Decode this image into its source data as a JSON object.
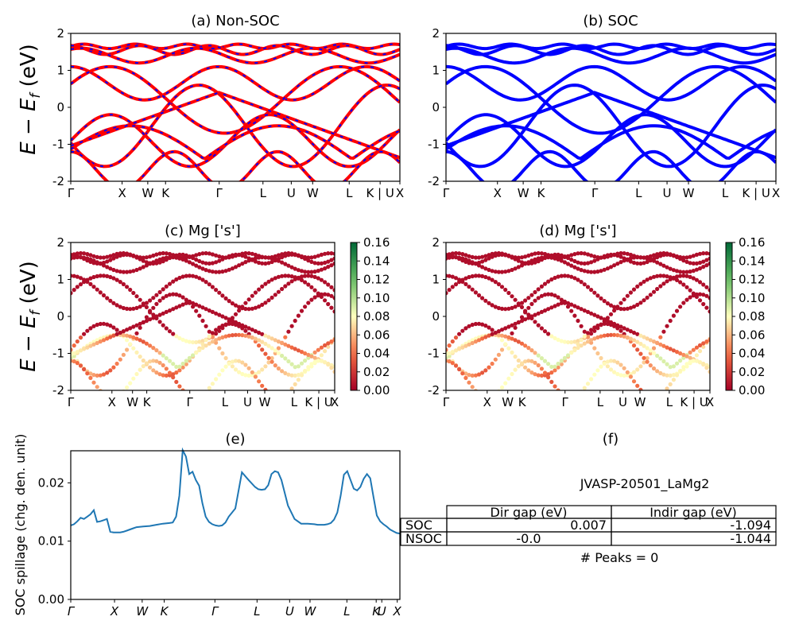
{
  "colors": {
    "nonsoc_red": "#ff0000",
    "nonsoc_blue": "#0000ff",
    "soc_blue": "#0000ff",
    "spillage_line": "#1f77b4",
    "colormap": "RdYlGn"
  },
  "ylabel_band": "E − E",
  "ylabel_band_sub": "f",
  "ylabel_band_unit": " (eV)",
  "kpath_labels": [
    "Γ",
    "X",
    "W",
    "K",
    "Γ",
    "L",
    "U",
    "W",
    "L",
    "K | U",
    "X"
  ],
  "chart_data": [
    {
      "type": "line",
      "panel": "a",
      "title": "(a) Non-SOC",
      "xlabel": "",
      "ylabel": "E − E_f (eV)",
      "ylim": [
        -2,
        2
      ],
      "yticks": [
        -2,
        -1,
        0,
        1,
        2
      ],
      "xtick_labels": [
        "Γ",
        "X",
        "W",
        "K",
        "Γ",
        "L",
        "U",
        "W",
        "L",
        "K | U",
        "X"
      ],
      "note": "electronic band structure, red solid with blue dashed overlay"
    },
    {
      "type": "line",
      "panel": "b",
      "title": "(b) SOC",
      "ylim": [
        -2,
        2
      ],
      "yticks": [
        -2,
        -1,
        0,
        1,
        2
      ],
      "xtick_labels": [
        "Γ",
        "X",
        "W",
        "K",
        "Γ",
        "L",
        "U",
        "W",
        "L",
        "K | U",
        "X"
      ]
    },
    {
      "type": "scatter",
      "panel": "c",
      "title": "(c)  Mg ['s']",
      "ylim": [
        -2,
        2
      ],
      "yticks": [
        -2,
        -1,
        0,
        1,
        2
      ],
      "xtick_labels": [
        "Γ",
        "X",
        "W",
        "K",
        "Γ",
        "L",
        "U",
        "W",
        "L",
        "K | U",
        "X"
      ],
      "colorbar_ticks": [
        "0.00",
        "0.02",
        "0.04",
        "0.06",
        "0.08",
        "0.10",
        "0.12",
        "0.14",
        "0.16"
      ],
      "colorbar_range": [
        0,
        0.16
      ]
    },
    {
      "type": "scatter",
      "panel": "d",
      "title": "(d) Mg ['s']",
      "ylim": [
        -2,
        2
      ],
      "yticks": [
        -2,
        -1,
        0,
        1,
        2
      ],
      "xtick_labels": [
        "Γ",
        "X",
        "W",
        "K",
        "Γ",
        "L",
        "U",
        "W",
        "L",
        "K | U",
        "X"
      ],
      "colorbar_ticks": [
        "0.00",
        "0.02",
        "0.04",
        "0.06",
        "0.08",
        "0.10",
        "0.12",
        "0.14",
        "0.16"
      ],
      "colorbar_range": [
        0,
        0.16
      ]
    },
    {
      "type": "line",
      "panel": "e",
      "title": "(e)",
      "ylabel": "SOC spillage (chg. den. unit)",
      "ylim": [
        0,
        0.0255
      ],
      "yticks": [
        "0.00",
        "0.01",
        "0.02"
      ],
      "xtick_labels": [
        "Γ",
        "X",
        "W",
        "K",
        "Γ",
        "L",
        "U",
        "W",
        "L",
        "K",
        "U",
        "X"
      ],
      "x": [
        0.0,
        0.01,
        0.02,
        0.03,
        0.04,
        0.05,
        0.06,
        0.07,
        0.08,
        0.09,
        0.1,
        0.11,
        0.12,
        0.13,
        0.14,
        0.15,
        0.16,
        0.17,
        0.18,
        0.19,
        0.2,
        0.22,
        0.24,
        0.26,
        0.28,
        0.3,
        0.31,
        0.32,
        0.33,
        0.34,
        0.35,
        0.36,
        0.37,
        0.38,
        0.39,
        0.4,
        0.41,
        0.42,
        0.43,
        0.44,
        0.45,
        0.46,
        0.47,
        0.48,
        0.5,
        0.52,
        0.54,
        0.56,
        0.57,
        0.58,
        0.59,
        0.6,
        0.61,
        0.62,
        0.63,
        0.64,
        0.66,
        0.68,
        0.7,
        0.72,
        0.74,
        0.75,
        0.76,
        0.77,
        0.78,
        0.79,
        0.8,
        0.81,
        0.82,
        0.83,
        0.84,
        0.85,
        0.86,
        0.87,
        0.88,
        0.89,
        0.9,
        0.91,
        0.92,
        0.93,
        0.94,
        0.95,
        0.96,
        0.97,
        0.98,
        0.99,
        1.0
      ],
      "values": [
        0.0127,
        0.0129,
        0.0134,
        0.014,
        0.0138,
        0.0142,
        0.0146,
        0.0153,
        0.0133,
        0.0134,
        0.0136,
        0.0138,
        0.0116,
        0.0115,
        0.0115,
        0.0115,
        0.0116,
        0.0118,
        0.012,
        0.0122,
        0.0124,
        0.0125,
        0.0126,
        0.0128,
        0.013,
        0.0131,
        0.0132,
        0.0142,
        0.0178,
        0.0256,
        0.0245,
        0.0215,
        0.0219,
        0.0205,
        0.0195,
        0.0165,
        0.0142,
        0.0133,
        0.0129,
        0.0127,
        0.0126,
        0.0127,
        0.0132,
        0.0142,
        0.0156,
        0.0218,
        0.0205,
        0.0193,
        0.0189,
        0.0188,
        0.0189,
        0.0196,
        0.0215,
        0.022,
        0.0218,
        0.0205,
        0.0161,
        0.0138,
        0.013,
        0.013,
        0.0129,
        0.0128,
        0.0128,
        0.0128,
        0.0129,
        0.0131,
        0.0137,
        0.0149,
        0.0178,
        0.0214,
        0.022,
        0.0205,
        0.019,
        0.0187,
        0.0193,
        0.0207,
        0.0215,
        0.0208,
        0.0175,
        0.0144,
        0.0134,
        0.0129,
        0.0125,
        0.012,
        0.0117,
        0.0114,
        0.0113
      ]
    }
  ],
  "panel_f": {
    "title": "(f)",
    "material": "JVASP-20501_LaMg2",
    "table": {
      "headers": [
        "",
        "Dir gap (eV)",
        "Indir gap (eV)"
      ],
      "rows": [
        [
          "SOC",
          "0.007",
          "-1.094"
        ],
        [
          "NSOC",
          "-0.0",
          "-1.044"
        ]
      ]
    },
    "peaks": "# Peaks = 0"
  }
}
